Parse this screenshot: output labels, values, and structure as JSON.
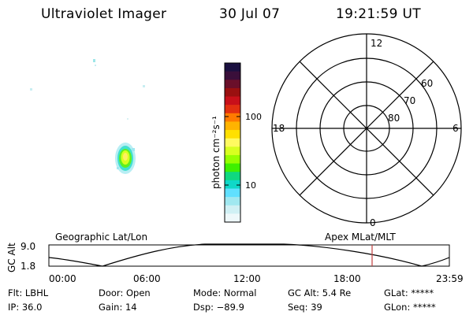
{
  "header": {
    "instrument": "Ultraviolet Imager",
    "date": "30 Jul 07",
    "time": "19:21:59 UT"
  },
  "colorbar": {
    "unit_label": "photon cm⁻²s⁻¹",
    "tick_labels": [
      "100",
      "10"
    ],
    "colors": [
      "#1a1040",
      "#3a0f3a",
      "#6a0f2a",
      "#9a1010",
      "#c8101a",
      "#e23010",
      "#ff7a00",
      "#ffb300",
      "#ffe000",
      "#fffa60",
      "#d8ff20",
      "#96ff00",
      "#3ef000",
      "#10d880",
      "#10d8c8",
      "#60e0ff",
      "#a0e8f0",
      "#d0f0f4",
      "#eef8fa"
    ]
  },
  "polar_plot": {
    "mlt_labels": {
      "top": "12",
      "left": "18",
      "right": "6",
      "bottom": "0"
    },
    "lat_labels": [
      "60",
      "70",
      "80"
    ]
  },
  "timeline": {
    "axis_title": "GC Alt",
    "y_ticks": [
      "9.0",
      "1.8"
    ],
    "left_caption": "Geographic Lat/Lon",
    "right_caption": "Apex MLat/MLT",
    "time_ticks": [
      "00:00",
      "06:00",
      "12:00",
      "18:00",
      "23:59"
    ],
    "current_time_hours": 19.37,
    "marker_color": "#c04040"
  },
  "status": {
    "row1": [
      "Flt: LBHL",
      "Door: Open",
      "Mode: Normal",
      "GC Alt: 5.4 Re",
      "GLat: *****"
    ],
    "row2": [
      "IP: 36.0",
      "Gain: 14",
      "Dsp:  −89.9",
      "Seq: 39",
      "GLon: *****"
    ]
  }
}
